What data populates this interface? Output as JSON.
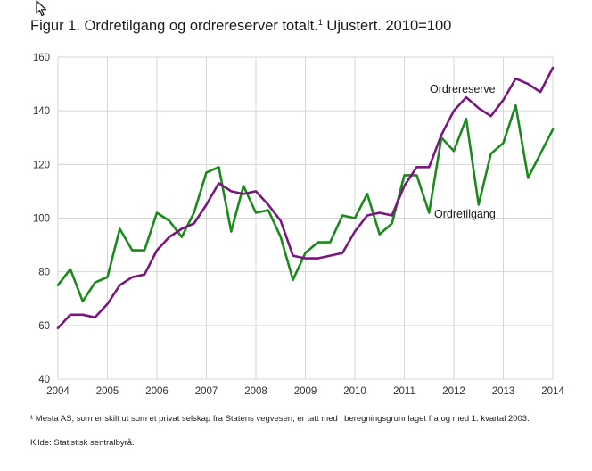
{
  "title_main": "Figur 1. Ordretilgang og ordrereserver totalt.",
  "title_sup": "1",
  "title_rest": " Ujustert. 2010=100",
  "footnote": "¹ Mesta AS, som er skilt ut som et privat selskap fra Statens vegvesen, er tatt med i beregningsgrunnlaget fra og med 1. kvartal 2003.",
  "source": "Kilde: Statistisk sentralbyrå.",
  "colors": {
    "ordretilgang": "#1a8a1a",
    "ordrereserve": "#7b1580",
    "grid": "#d6d6d6"
  },
  "chart_data": {
    "type": "line",
    "title": "Figur 1. Ordretilgang og ordrereserver totalt.¹ Ujustert. 2010=100",
    "xlabel": "",
    "ylabel": "",
    "ylim": [
      40,
      160
    ],
    "yticks": [
      40,
      60,
      80,
      100,
      120,
      140,
      160
    ],
    "xticks": [
      "2004",
      "2005",
      "2006",
      "2007",
      "2008",
      "2009",
      "2010",
      "2011",
      "2012",
      "2013",
      "2014"
    ],
    "grid": true,
    "x": [
      "2004K1",
      "2004K2",
      "2004K3",
      "2004K4",
      "2005K1",
      "2005K2",
      "2005K3",
      "2005K4",
      "2006K1",
      "2006K2",
      "2006K3",
      "2006K4",
      "2007K1",
      "2007K2",
      "2007K3",
      "2007K4",
      "2008K1",
      "2008K2",
      "2008K3",
      "2008K4",
      "2009K1",
      "2009K2",
      "2009K3",
      "2009K4",
      "2010K1",
      "2010K2",
      "2010K3",
      "2010K4",
      "2011K1",
      "2011K2",
      "2011K3",
      "2011K4",
      "2012K1",
      "2012K2",
      "2012K3",
      "2012K4",
      "2013K1",
      "2013K2",
      "2013K3",
      "2013K4",
      "2014K1"
    ],
    "series": [
      {
        "name": "Ordretilgang",
        "values": [
          75,
          81,
          69,
          76,
          78,
          96,
          88,
          88,
          102,
          99,
          93,
          102,
          117,
          119,
          95,
          112,
          102,
          103,
          93,
          77,
          87,
          91,
          91,
          101,
          100,
          109,
          94,
          98,
          116,
          116,
          102,
          130,
          125,
          137,
          105,
          124,
          128,
          142,
          115,
          124,
          133
        ]
      },
      {
        "name": "Ordrereserve",
        "values": [
          59,
          64,
          64,
          63,
          68,
          75,
          78,
          79,
          88,
          93,
          96,
          98,
          105,
          113,
          110,
          109,
          110,
          105,
          99,
          86,
          85,
          85,
          86,
          87,
          95,
          101,
          102,
          101,
          112,
          119,
          119,
          131,
          140,
          145,
          141,
          138,
          144,
          152,
          150,
          147,
          156
        ]
      }
    ]
  }
}
